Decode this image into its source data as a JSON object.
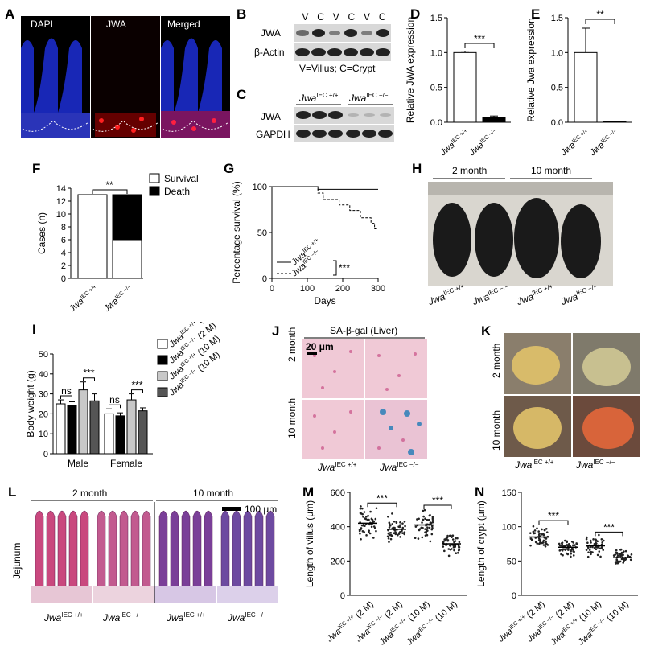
{
  "panels": {
    "A": {
      "letter": "A",
      "labels": [
        "DAPI",
        "JWA",
        "Merged"
      ]
    },
    "B": {
      "letter": "B",
      "row1": "JWA",
      "row2": "β-Actin",
      "lanes": [
        "V",
        "C",
        "V",
        "C",
        "V",
        "C"
      ],
      "legend": "V=Villus; C=Crypt"
    },
    "C": {
      "letter": "C",
      "row1": "JWA",
      "row2": "GAPDH",
      "g1": "Jwa",
      "g1sup": "IEC +/+",
      "g2": "Jwa",
      "g2sup": "IEC −/−"
    },
    "D": {
      "letter": "D",
      "sig": "***"
    },
    "E": {
      "letter": "E",
      "sig": "**"
    },
    "F": {
      "letter": "F",
      "sig": "**"
    },
    "G": {
      "letter": "G",
      "sig": "***"
    },
    "H": {
      "letter": "H",
      "ages": [
        "2 month",
        "10 month"
      ]
    },
    "I": {
      "letter": "I"
    },
    "J": {
      "letter": "J",
      "title": "SA-β-gal (Liver)",
      "scale": "20 μm",
      "rows": [
        "2 month",
        "10 month"
      ],
      "cols": [
        "Jwa",
        "Jwa"
      ],
      "colsup": [
        "IEC +/+",
        "IEC −/−"
      ]
    },
    "K": {
      "letter": "K",
      "rows": [
        "2 month",
        "10 month"
      ],
      "cols": [
        "Jwa",
        "Jwa"
      ],
      "colsup": [
        "IEC +/+",
        "IEC −/−"
      ]
    },
    "L": {
      "letter": "L",
      "ages": [
        "2 month",
        "10 month"
      ],
      "scale": "100 μm",
      "side": "Jejunum",
      "cols": [
        "Jwa",
        "Jwa",
        "Jwa",
        "Jwa"
      ],
      "colsup": [
        "IEC +/+",
        "IEC −/−",
        "IEC +/+",
        "IEC −/−"
      ]
    },
    "M": {
      "letter": "M"
    },
    "N": {
      "letter": "N"
    }
  },
  "chart_data": [
    {
      "id": "D",
      "type": "bar",
      "ylabel": "Relative JWA expression",
      "categories": [
        "JwaIEC +/+",
        "JwaIEC −/−"
      ],
      "values": [
        1.0,
        0.07
      ],
      "errors": [
        0.02,
        0.02
      ],
      "ylim": [
        0,
        1.5
      ],
      "yticks": [
        "0.0",
        "0.5",
        "1.0",
        "1.5"
      ],
      "significance": "***"
    },
    {
      "id": "E",
      "type": "bar",
      "ylabel": "Relative Jwa expression",
      "categories": [
        "JwaIEC +/+",
        "JwaIEC −/−"
      ],
      "values": [
        1.0,
        0.01
      ],
      "errors": [
        0.35,
        0.005
      ],
      "ylim": [
        0,
        1.5
      ],
      "yticks": [
        "0.0",
        "0.5",
        "1.0",
        "1.5"
      ],
      "significance": "**"
    },
    {
      "id": "F",
      "type": "bar",
      "ylabel": "Cases (n)",
      "categories": [
        "JwaIEC +/+",
        "JwaIEC −/−"
      ],
      "series": [
        {
          "name": "Survival",
          "values": [
            13,
            6
          ],
          "color": "#ffffff"
        },
        {
          "name": "Death",
          "values": [
            0,
            7
          ],
          "color": "#000000"
        }
      ],
      "ylim": [
        0,
        14
      ],
      "yticks": [
        "0",
        "2",
        "4",
        "6",
        "8",
        "10",
        "12",
        "14"
      ],
      "significance": "**"
    },
    {
      "id": "G",
      "type": "line",
      "xlabel": "Days",
      "ylabel": "Percentage survival (%)",
      "xlim": [
        0,
        300
      ],
      "ylim": [
        0,
        100
      ],
      "xticks": [
        "0",
        "100",
        "200",
        "300"
      ],
      "yticks": [
        "0",
        "50",
        "100"
      ],
      "series": [
        {
          "name": "JwaIEC +/+",
          "points": [
            [
              0,
              100
            ],
            [
              130,
              100
            ],
            [
              130,
              97
            ],
            [
              300,
              97
            ]
          ]
        },
        {
          "name": "JwaIEC −/−",
          "points": [
            [
              0,
              100
            ],
            [
              130,
              100
            ],
            [
              130,
              93
            ],
            [
              145,
              93
            ],
            [
              145,
              86
            ],
            [
              190,
              86
            ],
            [
              190,
              80
            ],
            [
              220,
              80
            ],
            [
              220,
              74
            ],
            [
              250,
              74
            ],
            [
              250,
              66
            ],
            [
              280,
              66
            ],
            [
              280,
              60
            ],
            [
              290,
              60
            ],
            [
              290,
              54
            ],
            [
              300,
              54
            ]
          ]
        }
      ],
      "significance": "***"
    },
    {
      "id": "I",
      "type": "bar",
      "ylabel": "Body weight (g)",
      "categories": [
        "Male",
        "Female"
      ],
      "ylim": [
        0,
        50
      ],
      "yticks": [
        "0",
        "10",
        "20",
        "30",
        "40",
        "50"
      ],
      "series": [
        {
          "name": "JwaIEC +/+ (2 M)",
          "values": [
            25,
            20
          ],
          "errors": [
            2,
            2.5
          ],
          "color": "#ffffff"
        },
        {
          "name": "JwaIEC −/− (2 M)",
          "values": [
            24,
            19
          ],
          "errors": [
            2,
            1.5
          ],
          "color": "#000000"
        },
        {
          "name": "JwaIEC +/+ (10 M)",
          "values": [
            32,
            27
          ],
          "errors": [
            4,
            3
          ],
          "color": "#c8c8c8"
        },
        {
          "name": "JwaIEC −/− (10 M)",
          "values": [
            26.5,
            21.5
          ],
          "errors": [
            3.5,
            1.5
          ],
          "color": "#555555"
        }
      ],
      "significance": [
        {
          "group": "Male",
          "pair": "2M",
          "label": "ns"
        },
        {
          "group": "Male",
          "pair": "10M",
          "label": "***"
        },
        {
          "group": "Female",
          "pair": "2M",
          "label": "ns"
        },
        {
          "group": "Female",
          "pair": "10M",
          "label": "***"
        }
      ]
    },
    {
      "id": "M",
      "type": "scatter",
      "ylabel": "Length of villus (μm)",
      "categories": [
        "JwaIEC +/+ (2 M)",
        "JwaIEC −/− (2 M)",
        "JwaIEC +/+ (10 M)",
        "JwaIEC −/− (10 M)"
      ],
      "values": [
        420,
        385,
        410,
        300
      ],
      "ylim": [
        0,
        600
      ],
      "yticks": [
        "0",
        "200",
        "400",
        "600"
      ],
      "significance": [
        "***",
        "***"
      ]
    },
    {
      "id": "N",
      "type": "scatter",
      "ylabel": "Length of crypt (μm)",
      "categories": [
        "JwaIEC +/+ (2 M)",
        "JwaIEC −/− (2 M)",
        "JwaIEC +/+ (10 M)",
        "JwaIEC −/− (10 M)"
      ],
      "values": [
        85,
        70,
        72,
        55
      ],
      "ylim": [
        0,
        150
      ],
      "yticks": [
        "0",
        "50",
        "100",
        "150"
      ],
      "significance": [
        "***",
        "***"
      ]
    }
  ]
}
